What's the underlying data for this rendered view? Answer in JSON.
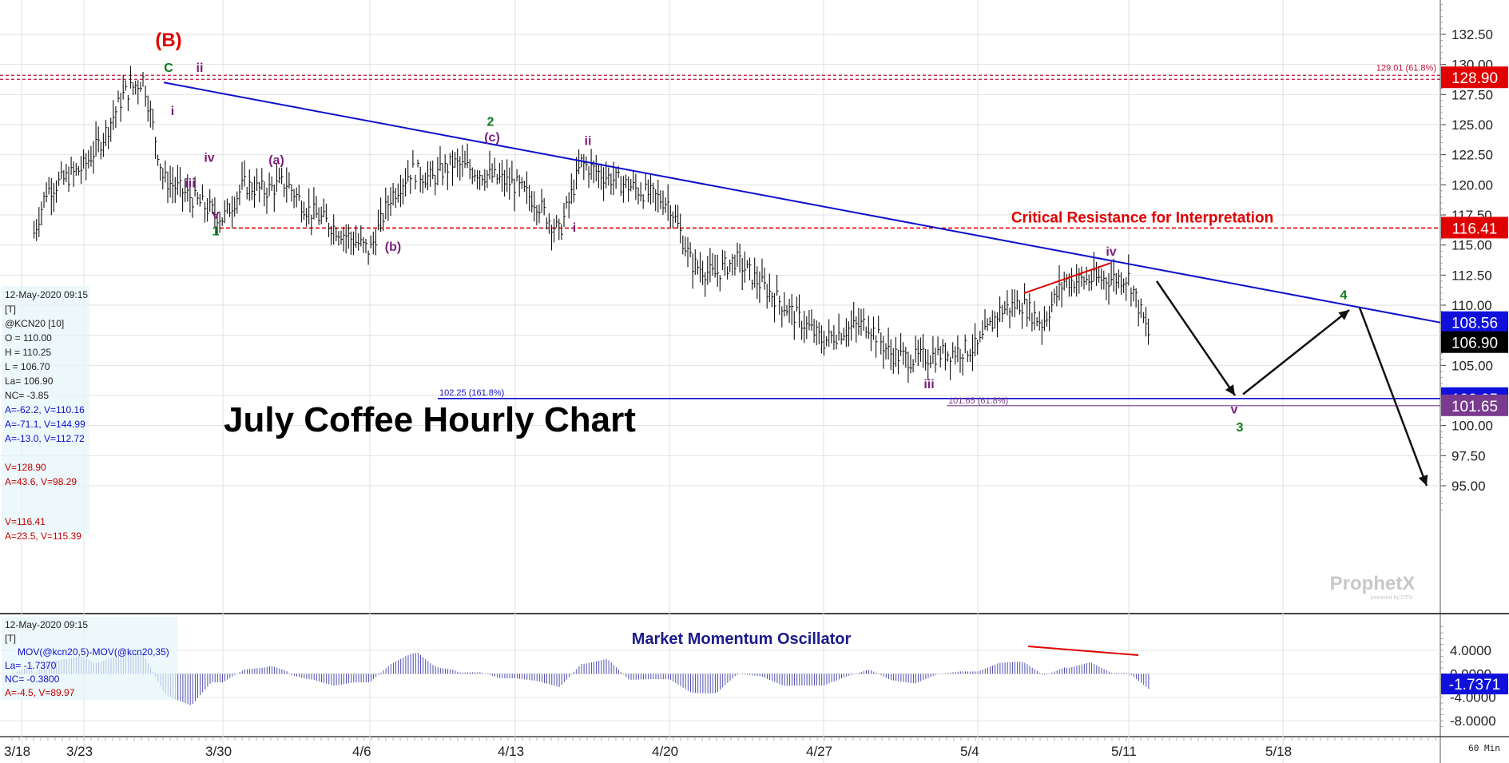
{
  "chart_data": {
    "type": "line",
    "title": "July Coffee Hourly Chart",
    "timeframe": "60 Min",
    "watermark": "ProphetX",
    "watermark_sub": "powered by DTN",
    "x_ticks": [
      "3/18",
      "3/23",
      "3/30",
      "4/6",
      "4/13",
      "4/20",
      "4/27",
      "5/4",
      "5/11",
      "5/18"
    ],
    "price_panel": {
      "ylim": [
        93,
        135
      ],
      "y_ticks": [
        95.0,
        97.5,
        100.0,
        102.5,
        105.0,
        107.5,
        110.0,
        112.5,
        115.0,
        117.5,
        120.0,
        122.5,
        125.0,
        127.5,
        130.0,
        132.5
      ],
      "series": [
        {
          "x": [
            "3/19",
            "3/20",
            "3/23",
            "3/24",
            "3/25",
            "3/26",
            "3/27",
            "3/30",
            "3/31",
            "4/1",
            "4/2",
            "4/3",
            "4/6",
            "4/7",
            "4/8",
            "4/9",
            "4/10",
            "4/13",
            "4/14",
            "4/15",
            "4/16",
            "4/17",
            "4/20",
            "4/21",
            "4/22",
            "4/23",
            "4/24",
            "4/27",
            "4/28",
            "4/29",
            "4/30",
            "5/1",
            "5/4",
            "5/5",
            "5/6",
            "5/7",
            "5/8",
            "5/11",
            "5/12"
          ],
          "y": [
            116.0,
            119.5,
            121.5,
            124.0,
            127.5,
            128.8,
            120.5,
            117.2,
            120.0,
            119.5,
            120.2,
            118.0,
            114.5,
            119.0,
            121.2,
            120.5,
            121.8,
            120.0,
            118.5,
            116.0,
            121.8,
            120.8,
            118.5,
            113.5,
            112.5,
            113.8,
            112.0,
            107.0,
            108.0,
            108.5,
            106.0,
            105.5,
            106.5,
            109.5,
            110.2,
            108.5,
            112.0,
            112.3,
            107.0
          ]
        }
      ],
      "levels": [
        {
          "label": "129.01 (61.8%)",
          "value": 129.01,
          "color": "#c0103a"
        },
        {
          "label": "Critical Resistance for Interpretation",
          "value": 116.41,
          "color": "#e00000"
        },
        {
          "label": "102.25 (161.8%)",
          "value": 102.25,
          "color": "#1010cc"
        },
        {
          "label": "101.65 (61.8%)",
          "value": 101.65,
          "color": "#7a3b8f"
        }
      ],
      "price_tags": [
        {
          "value": 128.9,
          "text": "128.90",
          "bg": "#e00000",
          "fg": "#ffffff"
        },
        {
          "value": 116.41,
          "text": "116.41",
          "bg": "#e00000",
          "fg": "#ffffff"
        },
        {
          "value": 108.56,
          "text": "108.56",
          "bg": "#1010dd",
          "fg": "#ffffff"
        },
        {
          "value": 106.9,
          "text": "106.90",
          "bg": "#000000",
          "fg": "#ffffff"
        },
        {
          "value": 102.25,
          "text": "102.25",
          "bg": "#1010dd",
          "fg": "#ffffff"
        },
        {
          "value": 101.65,
          "text": "101.65",
          "bg": "#7a3b8f",
          "fg": "#ffffff"
        }
      ],
      "wave_labels": [
        {
          "text": "(B)",
          "color": "#e00000"
        },
        {
          "text": "C",
          "color": "#0a7a1a"
        },
        {
          "text": "ii",
          "color": "#7a1f7a"
        },
        {
          "text": "i",
          "color": "#7a1f7a"
        },
        {
          "text": "iv",
          "color": "#7a1f7a"
        },
        {
          "text": "iii",
          "color": "#7a1f7a"
        },
        {
          "text": "v",
          "color": "#7a1f7a"
        },
        {
          "text": "1",
          "color": "#0a7a1a"
        },
        {
          "text": "(a)",
          "color": "#7a1f7a"
        },
        {
          "text": "(b)",
          "color": "#7a1f7a"
        },
        {
          "text": "2",
          "color": "#0a7a1a"
        },
        {
          "text": "(c)",
          "color": "#7a1f7a"
        },
        {
          "text": "ii",
          "color": "#7a1f7a"
        },
        {
          "text": "i",
          "color": "#7a1f7a"
        },
        {
          "text": "iii",
          "color": "#7a1f7a"
        },
        {
          "text": "iv",
          "color": "#7a1f7a"
        },
        {
          "text": "v",
          "color": "#7a1f7a"
        },
        {
          "text": "3",
          "color": "#0a7a1a"
        },
        {
          "text": "4",
          "color": "#0a7a1a"
        }
      ]
    },
    "oscillator_panel": {
      "title": "Market Momentum Oscillator",
      "ylim": [
        -9,
        9
      ],
      "y_ticks": [
        "4.0000",
        "0.0000",
        "-4.0000",
        "-8.0000"
      ],
      "current_tag": {
        "text": "-1.7371",
        "bg": "#1010dd",
        "fg": "#ffffff"
      }
    }
  },
  "price_info": {
    "timestamp": "12-May-2020 09:15",
    "flag": "[T]",
    "symbol": "@KCN20 [10]",
    "lines": [
      "O = 110.00",
      "H = 110.25",
      "L = 106.70",
      "La= 106.90",
      "NC= -3.85"
    ],
    "blue_lines": [
      "A=-62.2, V=110.16",
      "A=-71.1, V=144.99",
      "A=-13.0, V=112.72"
    ],
    "red_lines_1": [
      "V=128.90",
      "A=43.6, V=98.29"
    ],
    "red_lines_2": [
      "V=116.41",
      "A=23.5, V=115.39"
    ]
  },
  "osc_info": {
    "timestamp": "12-May-2020 09:15",
    "flag": "[T]",
    "name": "MOV(@kcn20,5)-MOV(@kcn20,35)",
    "lines": [
      "La= -1.7370",
      "NC= -0.3800",
      "A=-4.5, V=89.97"
    ]
  }
}
